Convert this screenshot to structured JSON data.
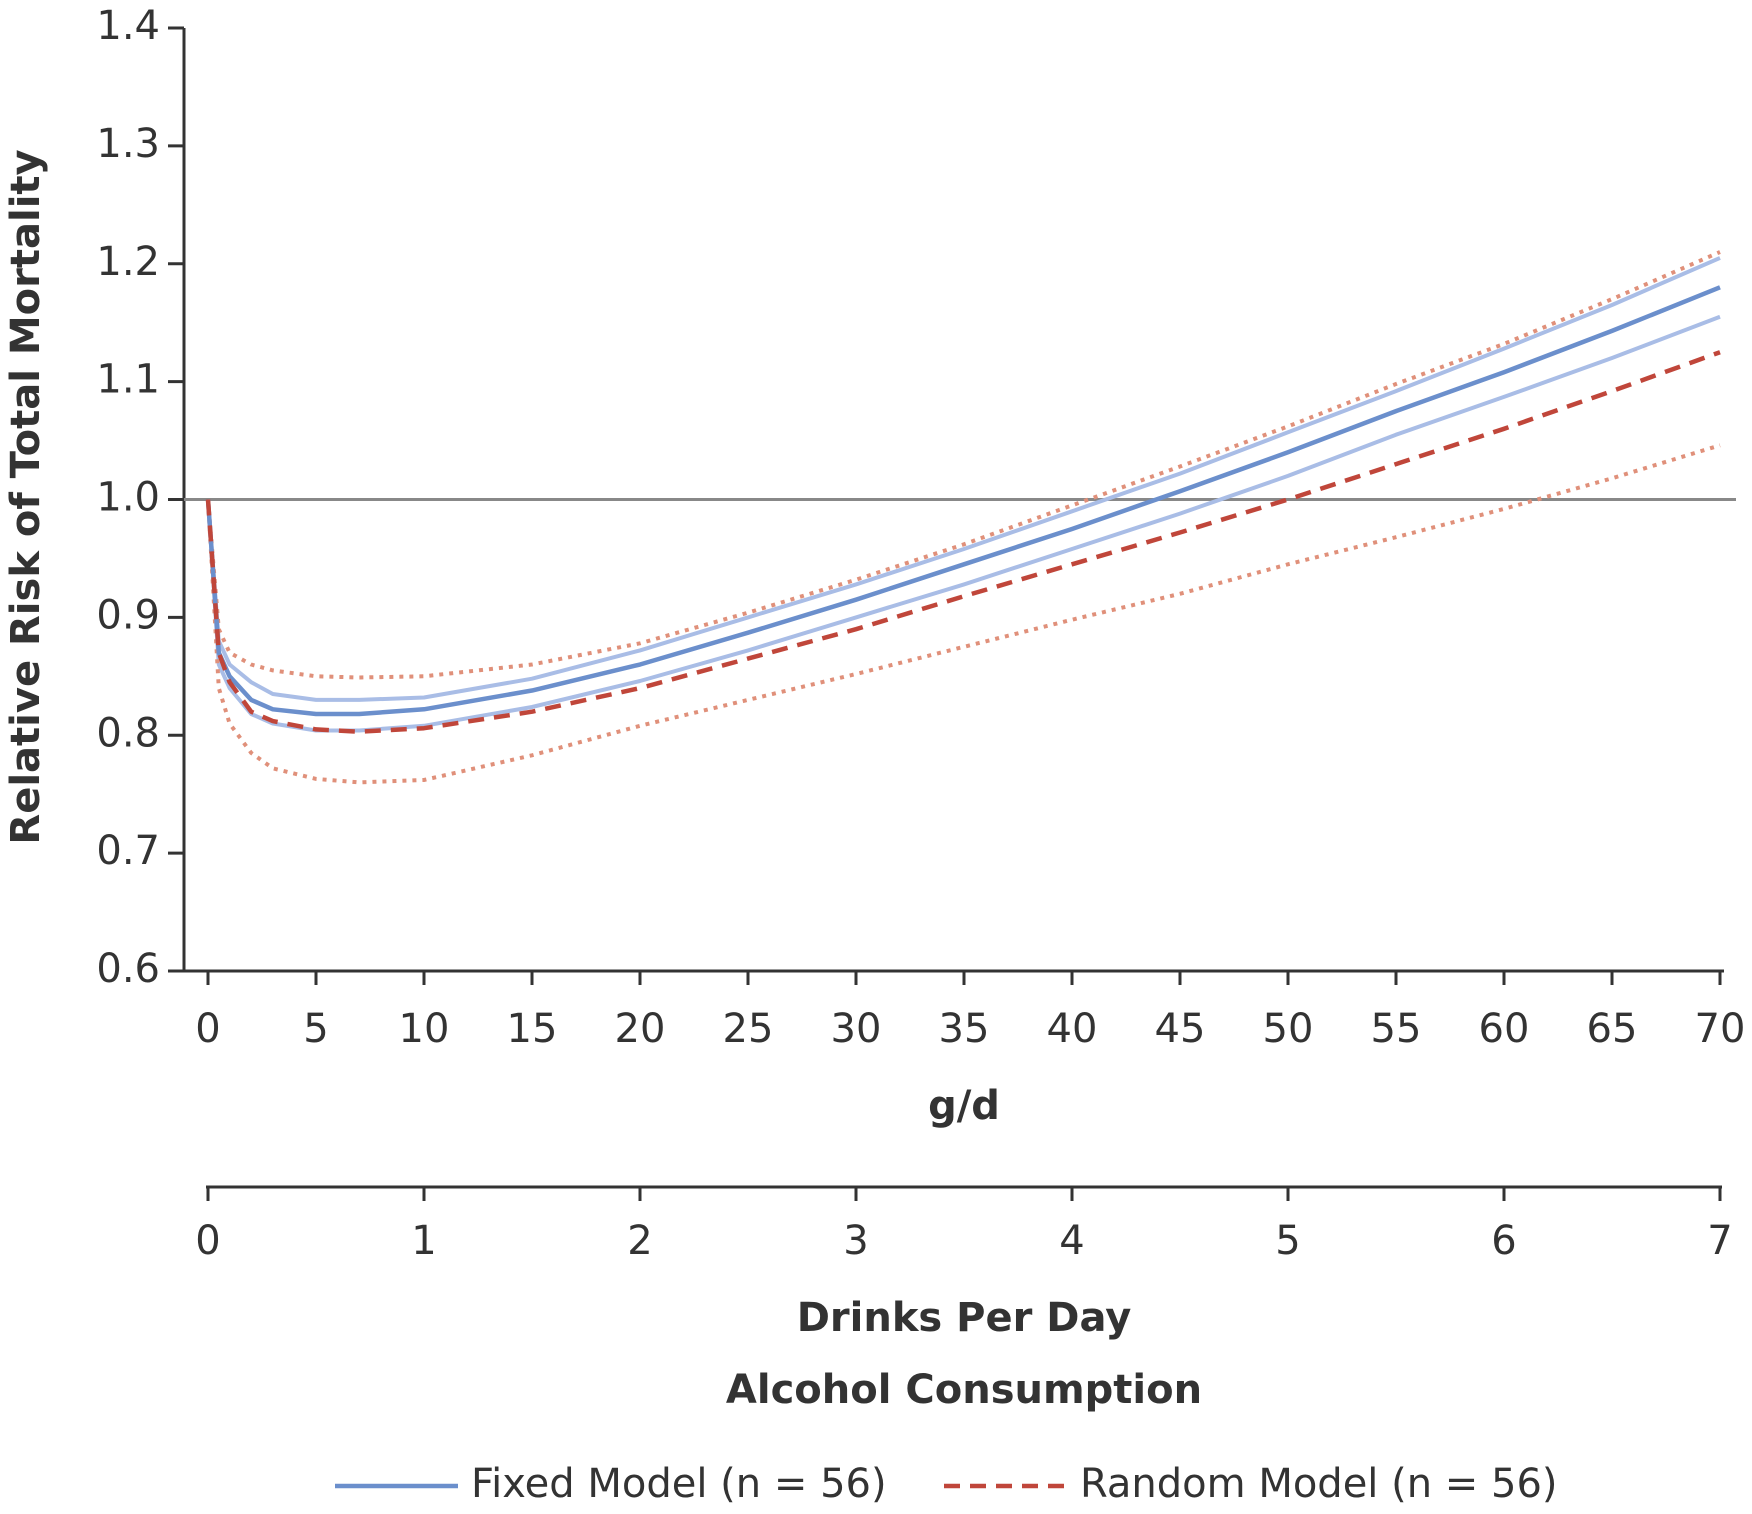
{
  "chart_data": {
    "type": "line",
    "y_label": "Relative Risk of Total Mortality",
    "x_label": "g/d",
    "x2_label": "Drinks Per Day",
    "x_group_label": "Alcohol Consumption",
    "x": [
      0,
      0.5,
      1,
      2,
      3,
      5,
      7,
      10,
      15,
      20,
      25,
      30,
      35,
      40,
      45,
      50,
      55,
      60,
      65,
      70
    ],
    "series": [
      {
        "name": "Fixed Model (n = 56)",
        "color": "#6b8fcc",
        "dash": "none",
        "band_color": "#a9bde6",
        "band_dash": "none",
        "values": [
          1.0,
          0.87,
          0.85,
          0.83,
          0.822,
          0.818,
          0.818,
          0.822,
          0.838,
          0.86,
          0.887,
          0.915,
          0.945,
          0.975,
          1.007,
          1.04,
          1.075,
          1.108,
          1.143,
          1.18
        ],
        "upper": [
          1.0,
          0.88,
          0.86,
          0.845,
          0.835,
          0.83,
          0.83,
          0.832,
          0.848,
          0.872,
          0.9,
          0.928,
          0.958,
          0.99,
          1.022,
          1.057,
          1.092,
          1.128,
          1.165,
          1.205
        ],
        "lower": [
          1.0,
          0.86,
          0.84,
          0.818,
          0.81,
          0.804,
          0.804,
          0.808,
          0.824,
          0.846,
          0.872,
          0.9,
          0.928,
          0.958,
          0.988,
          1.02,
          1.055,
          1.087,
          1.12,
          1.155
        ]
      },
      {
        "name": "Random Model (n = 56)",
        "color": "#c0463a",
        "dash": "16 10",
        "band_color": "#e0907a",
        "band_dash": "4 6",
        "values": [
          1.0,
          0.87,
          0.845,
          0.82,
          0.812,
          0.805,
          0.803,
          0.806,
          0.82,
          0.84,
          0.865,
          0.89,
          0.918,
          0.945,
          0.972,
          1.0,
          1.03,
          1.06,
          1.092,
          1.125
        ],
        "upper": [
          1.0,
          0.89,
          0.87,
          0.86,
          0.855,
          0.85,
          0.849,
          0.85,
          0.86,
          0.878,
          0.904,
          0.932,
          0.962,
          0.995,
          1.028,
          1.062,
          1.098,
          1.132,
          1.17,
          1.21
        ],
        "lower": [
          1.0,
          0.84,
          0.81,
          0.785,
          0.772,
          0.763,
          0.76,
          0.762,
          0.783,
          0.808,
          0.83,
          0.852,
          0.875,
          0.898,
          0.92,
          0.945,
          0.968,
          0.992,
          1.018,
          1.046
        ]
      }
    ],
    "hline": 1.0,
    "hline_color": "#888888",
    "xlim": [
      0,
      70
    ],
    "xticks": [
      0,
      5,
      10,
      15,
      20,
      25,
      30,
      35,
      40,
      45,
      50,
      55,
      60,
      65,
      70
    ],
    "x2lim": [
      0,
      7
    ],
    "x2ticks": [
      0,
      1,
      2,
      3,
      4,
      5,
      6,
      7
    ],
    "ylim": [
      0.6,
      1.4
    ],
    "yticks": [
      0.6,
      0.7,
      0.8,
      0.9,
      {
        "value": 1,
        "label": "1.0"
      },
      1.1,
      1.2,
      1.3,
      1.4
    ]
  }
}
